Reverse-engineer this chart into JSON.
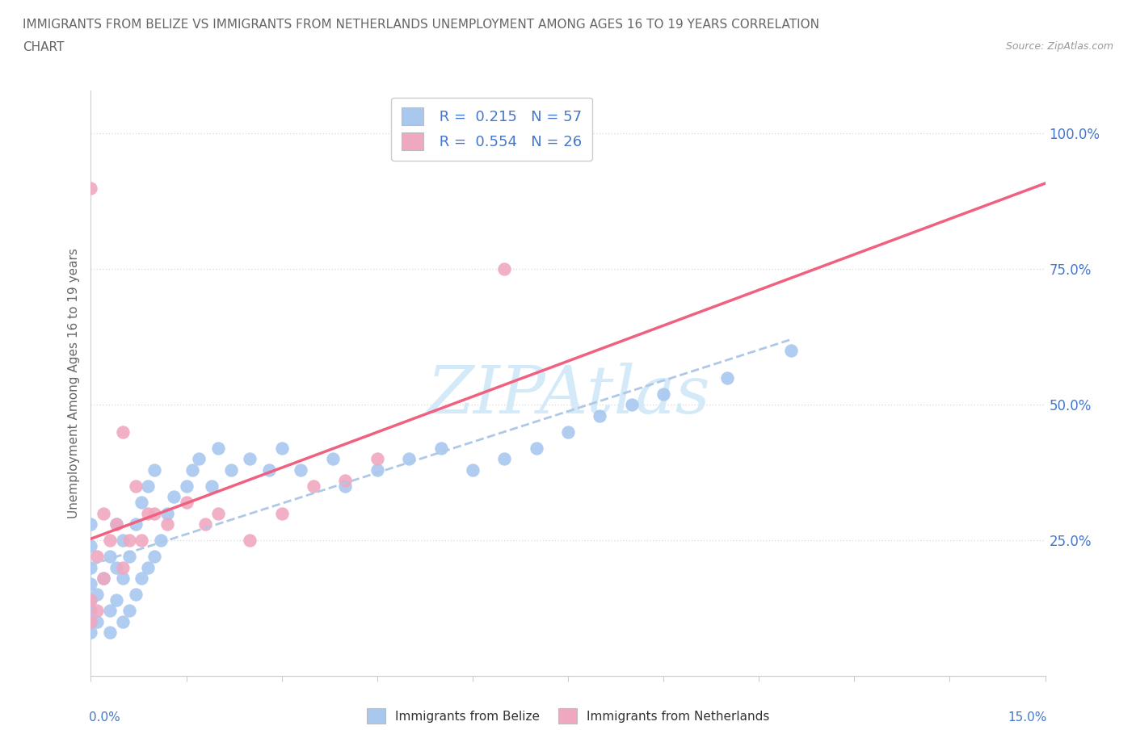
{
  "title_line1": "IMMIGRANTS FROM BELIZE VS IMMIGRANTS FROM NETHERLANDS UNEMPLOYMENT AMONG AGES 16 TO 19 YEARS CORRELATION",
  "title_line2": "CHART",
  "source": "Source: ZipAtlas.com",
  "ylabel": "Unemployment Among Ages 16 to 19 years",
  "xmin": 0.0,
  "xmax": 0.15,
  "ymin": 0.0,
  "ymax": 1.08,
  "belize_color": "#a8c8f0",
  "netherlands_color": "#f0a8c0",
  "belize_R": 0.215,
  "belize_N": 57,
  "netherlands_R": 0.554,
  "netherlands_N": 26,
  "belize_x": [
    0.0,
    0.0,
    0.0,
    0.0,
    0.0,
    0.0,
    0.0,
    0.0,
    0.001,
    0.001,
    0.002,
    0.003,
    0.003,
    0.003,
    0.004,
    0.004,
    0.004,
    0.005,
    0.005,
    0.005,
    0.006,
    0.006,
    0.007,
    0.007,
    0.008,
    0.008,
    0.009,
    0.009,
    0.01,
    0.01,
    0.011,
    0.012,
    0.013,
    0.015,
    0.016,
    0.017,
    0.019,
    0.02,
    0.022,
    0.025,
    0.028,
    0.03,
    0.033,
    0.038,
    0.04,
    0.045,
    0.05,
    0.055,
    0.06,
    0.065,
    0.07,
    0.075,
    0.08,
    0.085,
    0.09,
    0.1,
    0.11
  ],
  "belize_y": [
    0.08,
    0.1,
    0.12,
    0.14,
    0.17,
    0.2,
    0.24,
    0.28,
    0.1,
    0.15,
    0.18,
    0.08,
    0.12,
    0.22,
    0.14,
    0.2,
    0.28,
    0.1,
    0.18,
    0.25,
    0.12,
    0.22,
    0.15,
    0.28,
    0.18,
    0.32,
    0.2,
    0.35,
    0.22,
    0.38,
    0.25,
    0.3,
    0.33,
    0.35,
    0.38,
    0.4,
    0.35,
    0.42,
    0.38,
    0.4,
    0.38,
    0.42,
    0.38,
    0.4,
    0.35,
    0.38,
    0.4,
    0.42,
    0.38,
    0.4,
    0.42,
    0.45,
    0.48,
    0.5,
    0.52,
    0.55,
    0.6
  ],
  "netherlands_x": [
    0.0,
    0.0,
    0.0,
    0.001,
    0.001,
    0.002,
    0.002,
    0.003,
    0.004,
    0.005,
    0.005,
    0.006,
    0.007,
    0.008,
    0.009,
    0.01,
    0.012,
    0.015,
    0.018,
    0.02,
    0.025,
    0.03,
    0.035,
    0.04,
    0.045,
    0.065
  ],
  "netherlands_y": [
    0.1,
    0.14,
    0.9,
    0.12,
    0.22,
    0.18,
    0.3,
    0.25,
    0.28,
    0.2,
    0.45,
    0.25,
    0.35,
    0.25,
    0.3,
    0.3,
    0.28,
    0.32,
    0.28,
    0.3,
    0.25,
    0.3,
    0.35,
    0.36,
    0.4,
    0.75
  ],
  "watermark": "ZIPAtlas",
  "watermark_color": "#d4eaf8",
  "label_color": "#4477cc",
  "text_color": "#666666",
  "grid_color": "#dddddd",
  "axis_color": "#cccccc"
}
